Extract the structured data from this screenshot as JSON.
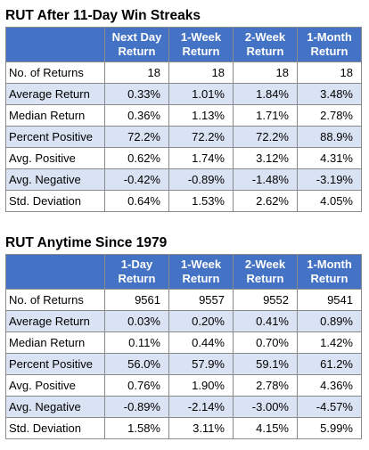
{
  "streaks": {
    "title": "RUT After 11-Day Win Streaks",
    "columns": [
      {
        "line1": "Next Day",
        "line2": "Return"
      },
      {
        "line1": "1-Week",
        "line2": "Return"
      },
      {
        "line1": "2-Week",
        "line2": "Return"
      },
      {
        "line1": "1-Month",
        "line2": "Return"
      }
    ],
    "rows": [
      {
        "label": "No. of Returns",
        "values": [
          "18",
          "18",
          "18",
          "18"
        ]
      },
      {
        "label": "Average Return",
        "values": [
          "0.33%",
          "1.01%",
          "1.84%",
          "3.48%"
        ]
      },
      {
        "label": "Median Return",
        "values": [
          "0.36%",
          "1.13%",
          "1.71%",
          "2.78%"
        ]
      },
      {
        "label": "Percent Positive",
        "values": [
          "72.2%",
          "72.2%",
          "72.2%",
          "88.9%"
        ]
      },
      {
        "label": "Avg. Positive",
        "values": [
          "0.62%",
          "1.74%",
          "3.12%",
          "4.31%"
        ]
      },
      {
        "label": "Avg. Negative",
        "values": [
          "-0.42%",
          "-0.89%",
          "-1.48%",
          "-3.19%"
        ]
      },
      {
        "label": "Std. Deviation",
        "values": [
          "0.64%",
          "1.53%",
          "2.62%",
          "4.05%"
        ]
      }
    ]
  },
  "anytime": {
    "title": "RUT Anytime Since 1979",
    "columns": [
      {
        "line1": "1-Day",
        "line2": "Return"
      },
      {
        "line1": "1-Week",
        "line2": "Return"
      },
      {
        "line1": "2-Week",
        "line2": "Return"
      },
      {
        "line1": "1-Month",
        "line2": "Return"
      }
    ],
    "rows": [
      {
        "label": "No. of Returns",
        "values": [
          "9561",
          "9557",
          "9552",
          "9541"
        ]
      },
      {
        "label": "Average Return",
        "values": [
          "0.03%",
          "0.20%",
          "0.41%",
          "0.89%"
        ]
      },
      {
        "label": "Median Return",
        "values": [
          "0.11%",
          "0.44%",
          "0.70%",
          "1.42%"
        ]
      },
      {
        "label": "Percent Positive",
        "values": [
          "56.0%",
          "57.9%",
          "59.1%",
          "61.2%"
        ]
      },
      {
        "label": "Avg. Positive",
        "values": [
          "0.76%",
          "1.90%",
          "2.78%",
          "4.36%"
        ]
      },
      {
        "label": "Avg. Negative",
        "values": [
          "-0.89%",
          "-2.14%",
          "-3.00%",
          "-4.57%"
        ]
      },
      {
        "label": "Std. Deviation",
        "values": [
          "1.58%",
          "3.11%",
          "4.15%",
          "5.99%"
        ]
      }
    ]
  },
  "colors": {
    "header_fill": "#4472c4",
    "header_text": "#ffffff",
    "band_fill": "#dae3f3",
    "border": "#8a8a8a"
  }
}
